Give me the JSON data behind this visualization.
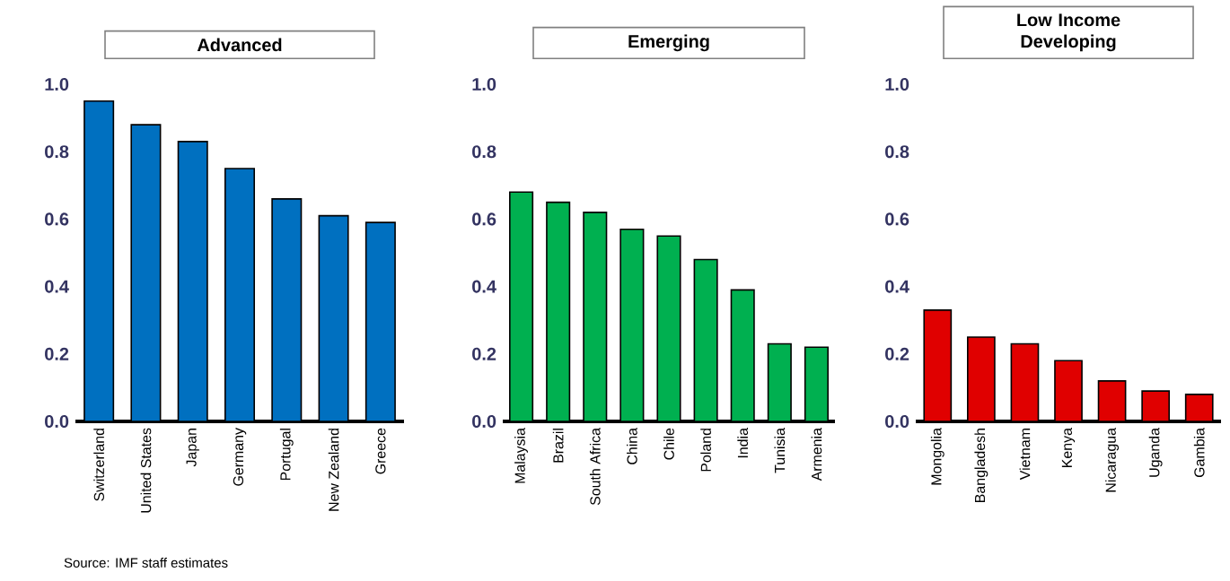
{
  "chart_data": [
    {
      "type": "bar",
      "title": "Advanced",
      "categories": [
        "Switzerland",
        "United States",
        "Japan",
        "Germany",
        "Portugal",
        "New Zealand",
        "Greece"
      ],
      "values": [
        0.95,
        0.88,
        0.83,
        0.75,
        0.66,
        0.61,
        0.59
      ],
      "color": "#0070c0",
      "ylim": [
        0,
        1
      ],
      "yticks": [
        {
          "value": 0,
          "label": "0.0"
        },
        {
          "value": 0.2,
          "label": "0.2"
        },
        {
          "value": 0.4,
          "label": "0.4"
        },
        {
          "value": 0.6,
          "label": "0.6"
        },
        {
          "value": 0.8,
          "label": "0.8"
        },
        {
          "value": 1,
          "label": "1.0"
        }
      ],
      "annotations": [
        "Source: IMF staff estimates"
      ]
    },
    {
      "type": "bar",
      "title": "Emerging",
      "categories": [
        "Malaysia",
        "Brazil",
        "South Africa",
        "China",
        "Chile",
        "Poland",
        "India",
        "Tunisia",
        "Armenia"
      ],
      "values": [
        0.68,
        0.65,
        0.62,
        0.57,
        0.55,
        0.48,
        0.39,
        0.23,
        0.22
      ],
      "color": "#00b050",
      "ylim": [
        0,
        1
      ],
      "yticks": [
        {
          "value": 0,
          "label": "0.0"
        },
        {
          "value": 0.2,
          "label": "0.2"
        },
        {
          "value": 0.4,
          "label": "0.4"
        },
        {
          "value": 0.6,
          "label": "0.6"
        },
        {
          "value": 0.8,
          "label": "0.8"
        },
        {
          "value": 1,
          "label": "1.0"
        }
      ]
    },
    {
      "type": "bar",
      "title": "Low Income Developing",
      "categories": [
        "Mongolia",
        "Bangladesh",
        "Vietnam",
        "Kenya",
        "Nicaragua",
        "Uganda",
        "Gambia"
      ],
      "values": [
        0.33,
        0.25,
        0.23,
        0.18,
        0.12,
        0.09,
        0.08
      ],
      "color": "#e00000",
      "ylim": [
        0,
        1
      ],
      "yticks": [
        {
          "value": 0,
          "label": "0.0"
        },
        {
          "value": 0.2,
          "label": "0.2"
        },
        {
          "value": 0.4,
          "label": "0.4"
        },
        {
          "value": 0.6,
          "label": "0.6"
        },
        {
          "value": 0.8,
          "label": "0.8"
        },
        {
          "value": 1,
          "label": "1.0"
        }
      ]
    }
  ]
}
